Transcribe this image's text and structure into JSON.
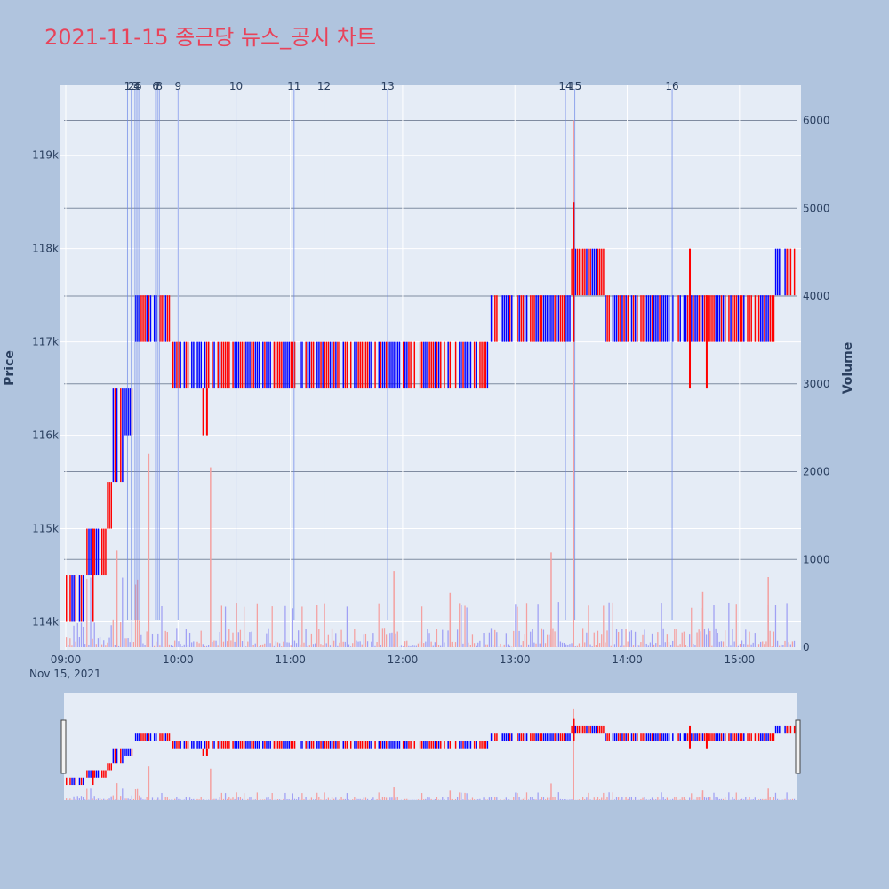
{
  "colors": {
    "page_bg": "#b0c4de",
    "plot_bg": "#e5ecf6",
    "up": "#ff0000",
    "down": "#0000ff",
    "up_vol": "#f4a0a0",
    "down_vol": "#a0a0f4",
    "event_line": "#6a85e8",
    "title": "#e8435a",
    "vol_grid": "#7f8ba0"
  },
  "chart_data": {
    "type": "candlestick",
    "title": "2021-11-15 종근당 뉴스_공시 차트",
    "ylabel_left": "Price",
    "ylabel_right": "Volume",
    "x_range": [
      "09:00",
      "15:30"
    ],
    "x_ticks": [
      "09:00",
      "10:00",
      "11:00",
      "12:00",
      "13:00",
      "14:00",
      "15:00"
    ],
    "x_date_label": "Nov 15, 2021",
    "y_price_range": [
      113700,
      119750
    ],
    "y_price_ticks": [
      114000,
      115000,
      116000,
      117000,
      118000,
      119000
    ],
    "y_price_tick_labels": [
      "114k",
      "115k",
      "116k",
      "117k",
      "118k",
      "119k"
    ],
    "y_volume_range": [
      0,
      6400
    ],
    "y_volume_ticks": [
      0,
      1000,
      2000,
      3000,
      4000,
      5000,
      6000
    ],
    "y_volume_tick_labels": [
      "0",
      "1000",
      "2000",
      "3000",
      "4000",
      "5000",
      "6000"
    ],
    "range_slider": true,
    "events": [
      {
        "label": "1",
        "time": "09:33"
      },
      {
        "label": "2",
        "time": "09:35"
      },
      {
        "label": "3",
        "time": "09:37"
      },
      {
        "label": "4",
        "time": "09:38"
      },
      {
        "label": "5",
        "time": "09:39"
      },
      {
        "label": "6",
        "time": "09:48"
      },
      {
        "label": "7",
        "time": "09:49"
      },
      {
        "label": "8",
        "time": "09:50"
      },
      {
        "label": "9",
        "time": "10:00"
      },
      {
        "label": "10",
        "time": "10:31"
      },
      {
        "label": "11",
        "time": "11:02"
      },
      {
        "label": "12",
        "time": "11:18"
      },
      {
        "label": "13",
        "time": "11:52"
      },
      {
        "label": "14",
        "time": "13:27"
      },
      {
        "label": "15",
        "time": "13:32"
      },
      {
        "label": "16",
        "time": "14:24"
      }
    ],
    "price_segments": [
      {
        "start": "09:00",
        "end": "09:10",
        "low": 114000,
        "high": 114500
      },
      {
        "start": "09:10",
        "end": "09:22",
        "low": 114500,
        "high": 115000
      },
      {
        "start": "09:22",
        "end": "09:25",
        "low": 115000,
        "high": 115500
      },
      {
        "start": "09:25",
        "end": "09:31",
        "low": 115500,
        "high": 116500
      },
      {
        "start": "09:31",
        "end": "09:36",
        "low": 116000,
        "high": 116500
      },
      {
        "start": "09:36",
        "end": "09:56",
        "low": 117000,
        "high": 117500
      },
      {
        "start": "09:56",
        "end": "12:46",
        "low": 116500,
        "high": 117000
      },
      {
        "start": "12:46",
        "end": "13:30",
        "low": 117000,
        "high": 117500
      },
      {
        "start": "13:30",
        "end": "13:48",
        "low": 117500,
        "high": 118000
      },
      {
        "start": "13:48",
        "end": "15:19",
        "low": 117000,
        "high": 117500
      },
      {
        "start": "15:19",
        "end": "15:30",
        "low": 117500,
        "high": 118000
      }
    ],
    "price_spikes": [
      {
        "time": "10:13",
        "low": 116000,
        "high": 116500
      },
      {
        "time": "10:15",
        "low": 116000,
        "high": 116500
      },
      {
        "time": "09:14",
        "low": 114000,
        "high": 115000
      },
      {
        "time": "13:31",
        "low": 117000,
        "high": 118500
      },
      {
        "time": "14:33",
        "low": 116500,
        "high": 118000
      },
      {
        "time": "14:42",
        "low": 116500,
        "high": 117500
      }
    ],
    "volume_spikes": [
      {
        "time": "09:44",
        "value": 2200
      },
      {
        "time": "10:17",
        "value": 2050
      },
      {
        "time": "11:55",
        "value": 870
      },
      {
        "time": "13:19",
        "value": 1080
      },
      {
        "time": "13:31",
        "value": 6000
      },
      {
        "time": "15:15",
        "value": 800
      },
      {
        "time": "14:40",
        "value": 630
      },
      {
        "time": "12:25",
        "value": 620
      },
      {
        "time": "09:27",
        "value": 1100
      }
    ]
  }
}
